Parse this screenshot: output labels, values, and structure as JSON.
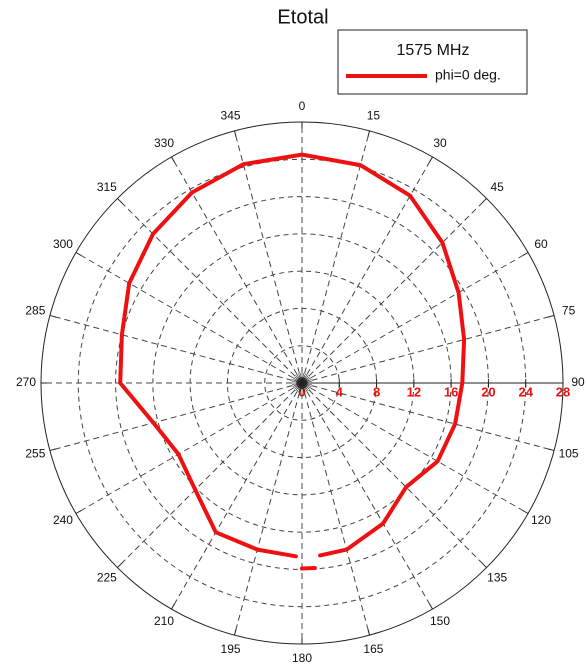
{
  "chart_data": {
    "type": "polar",
    "title": "Etotal",
    "legend_title": "1575 MHz",
    "x": [
      0,
      15,
      30,
      45,
      60,
      75,
      90,
      105,
      120,
      135,
      150,
      165,
      174,
      175,
      176,
      180,
      181,
      182,
      195,
      210,
      225,
      240,
      255,
      270,
      285,
      300,
      315,
      330,
      345,
      360
    ],
    "series": [
      {
        "name": "phi=0 deg.",
        "color": "#ee1111",
        "values": [
          24.5,
          24.2,
          23.2,
          21.3,
          19.4,
          18.0,
          17.2,
          17.0,
          16.8,
          15.8,
          17.4,
          18.5,
          18.6,
          null,
          19.9,
          19.9,
          null,
          18.6,
          18.5,
          18.5,
          16.2,
          15.3,
          16.5,
          19.5,
          20.0,
          21.4,
          22.6,
          23.6,
          24.3,
          24.5
        ]
      }
    ],
    "rlim": [
      0,
      28
    ],
    "rticks": [
      0,
      4,
      8,
      12,
      16,
      20,
      24,
      28
    ],
    "xticks": [
      0,
      15,
      30,
      45,
      60,
      75,
      90,
      105,
      120,
      135,
      150,
      165,
      180,
      195,
      210,
      225,
      240,
      255,
      270,
      285,
      300,
      315,
      330,
      345
    ],
    "grid": true
  }
}
